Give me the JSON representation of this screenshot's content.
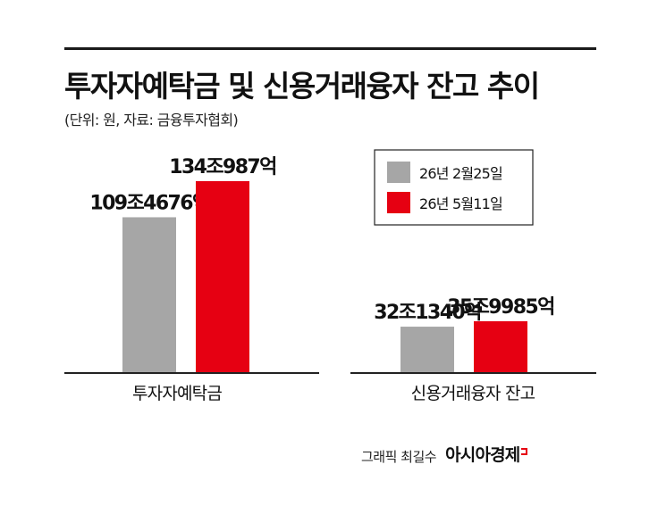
{
  "header": {
    "title": "투자자예탁금 및 신용거래융자 잔고 추이",
    "subtitle": "(단위: 원, 자료: 금융투자협회)"
  },
  "credit": {
    "text": "그래픽 최길수",
    "logo": "아시아경제"
  },
  "chart_data": {
    "type": "bar",
    "title": "투자자예탁금 및 신용거래융자 잔고 추이",
    "unit": "원",
    "categories": [
      "투자자예탁금",
      "신용거래융자 잔고"
    ],
    "series": [
      {
        "name": "26년 2월25일",
        "color": "#a6a6a6",
        "values": [
          1094676,
          321340
        ],
        "labels": [
          "109조4676억",
          "32조1340억"
        ]
      },
      {
        "name": "26년 5월11일",
        "color": "#e60012",
        "values": [
          1349870,
          359985
        ],
        "labels": [
          "134조987억",
          "35조9985억"
        ]
      }
    ],
    "legend_position": "top-right",
    "grid": false
  }
}
